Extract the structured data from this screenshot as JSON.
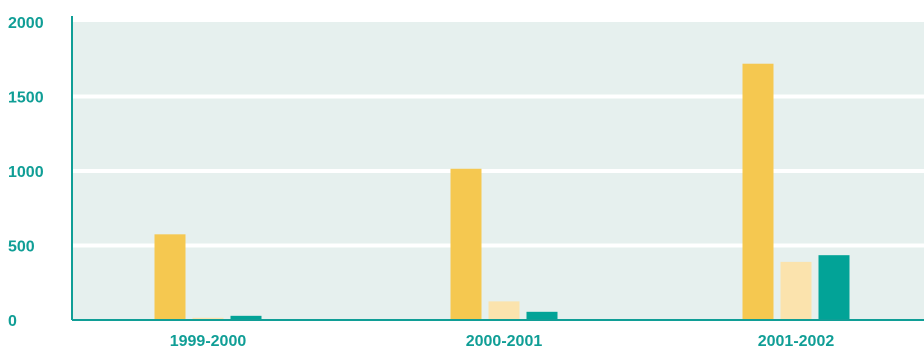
{
  "chart_data": {
    "type": "bar",
    "categories": [
      "1999-2000",
      "2000-2001",
      "2001-2002"
    ],
    "series": [
      {
        "values": [
          575,
          1015,
          1720
        ],
        "color": "#f5c850"
      },
      {
        "values": [
          15,
          125,
          390
        ],
        "color": "#fbe3ad"
      },
      {
        "values": [
          28,
          55,
          435
        ],
        "color": "#02a397"
      }
    ],
    "ylim": [
      0,
      2000
    ],
    "yticks": [
      0,
      500,
      1000,
      1500,
      2000
    ],
    "xlabel": "",
    "ylabel": "",
    "title": "",
    "grid": true,
    "plot_background": "#e6f0ee",
    "gridline_color": "#ffffff",
    "axis_color": "#109e96",
    "label_color": "#109e96"
  }
}
